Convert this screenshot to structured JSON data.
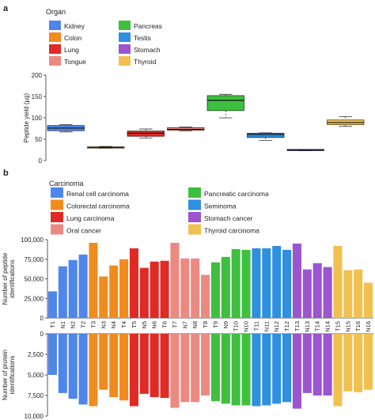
{
  "panel_a": {
    "panel_label": "a",
    "legend_title": "Organ",
    "legend": [
      {
        "label": "Kidney",
        "color": "#4f86ec"
      },
      {
        "label": "Colon",
        "color": "#f08c1e"
      },
      {
        "label": "Lung",
        "color": "#e02a26"
      },
      {
        "label": "Tongue",
        "color": "#ec8a82"
      },
      {
        "label": "Pancreas",
        "color": "#3fbf3f"
      },
      {
        "label": "Testis",
        "color": "#2f8fe0"
      },
      {
        "label": "Stomach",
        "color": "#9a55cf"
      },
      {
        "label": "Thyroid",
        "color": "#f2c04e"
      }
    ]
  },
  "panel_b": {
    "panel_label": "b",
    "legend_title": "Carcinoma",
    "legend": [
      {
        "label": "Renal cell carcinoma",
        "color": "#4f86ec"
      },
      {
        "label": "Colorectal carcinoma",
        "color": "#f08c1e"
      },
      {
        "label": "Lung carcinoma",
        "color": "#e02a26"
      },
      {
        "label": "Oral cancer",
        "color": "#ec8a82"
      },
      {
        "label": "Pancreatic carcinoma",
        "color": "#3fbf3f"
      },
      {
        "label": "Seminoma",
        "color": "#2f8fe0"
      },
      {
        "label": "Stomach cancer",
        "color": "#9a55cf"
      },
      {
        "label": "Thyroid carcinoma",
        "color": "#f2c04e"
      }
    ]
  },
  "chart_data": [
    {
      "type": "box",
      "ylabel": "Peptide yield (µg)",
      "ylim": [
        0,
        200
      ],
      "yticks": [
        0,
        50,
        100,
        150,
        200
      ],
      "series": [
        {
          "name": "Kidney",
          "color": "#4f86ec",
          "min": 67,
          "q1": 70,
          "median": 76,
          "q3": 82,
          "max": 84
        },
        {
          "name": "Colon",
          "color": "#f08c1e",
          "min": 29,
          "q1": 30,
          "median": 31,
          "q3": 32,
          "max": 33
        },
        {
          "name": "Lung",
          "color": "#e02a26",
          "min": 53,
          "q1": 57,
          "median": 64,
          "q3": 69,
          "max": 74
        },
        {
          "name": "Tongue",
          "color": "#ec8a82",
          "min": 69,
          "q1": 71,
          "median": 73,
          "q3": 77,
          "max": 79
        },
        {
          "name": "Pancreas",
          "color": "#3fbf3f",
          "min": 100,
          "q1": 117,
          "median": 141,
          "q3": 152,
          "max": 155
        },
        {
          "name": "Testis",
          "color": "#2f8fe0",
          "min": 47,
          "q1": 54,
          "median": 61,
          "q3": 64,
          "max": 65
        },
        {
          "name": "Stomach",
          "color": "#9a55cf",
          "min": 23,
          "q1": 24,
          "median": 25,
          "q3": 26,
          "max": 26
        },
        {
          "name": "Thyroid",
          "color": "#f2c04e",
          "min": 80,
          "q1": 84,
          "median": 89,
          "q3": 95,
          "max": 103
        }
      ]
    },
    {
      "type": "bar",
      "ylabel": "Number of peptide identifications",
      "ylim": [
        0,
        100000
      ],
      "yticks": [
        0,
        25000,
        50000,
        75000,
        100000
      ],
      "ytick_labels": [
        "0",
        "25,000",
        "50,000",
        "75,000",
        "100,000"
      ],
      "categories": [
        "T1",
        "N1",
        "N2",
        "T2",
        "T3",
        "N3",
        "N4",
        "T4",
        "T5",
        "N5",
        "N6",
        "T6",
        "T7",
        "N7",
        "N8",
        "T8",
        "T9",
        "N9",
        "T10",
        "N10",
        "T11",
        "N11",
        "N12",
        "T12",
        "T13",
        "N13",
        "T14",
        "N14",
        "T15",
        "N15",
        "T16",
        "N16"
      ],
      "values": [
        34000,
        66000,
        74000,
        81000,
        96000,
        53000,
        67000,
        75000,
        89000,
        64000,
        72000,
        73000,
        96000,
        76000,
        76000,
        55000,
        71000,
        78000,
        88000,
        87000,
        89000,
        89000,
        92000,
        87000,
        95000,
        62000,
        70000,
        65000,
        92000,
        61000,
        62000,
        45000
      ]
    },
    {
      "type": "bar",
      "orientation": "down",
      "ylabel": "Number of protein identifications",
      "ylim": [
        0,
        10000
      ],
      "yticks": [
        0,
        2500,
        5000,
        7500,
        10000
      ],
      "ytick_labels": [
        "0",
        "2,500",
        "5,000",
        "7,500",
        "10,000"
      ],
      "categories": [
        "T1",
        "N1",
        "N2",
        "T2",
        "T3",
        "N3",
        "N4",
        "T4",
        "T5",
        "N5",
        "N6",
        "T6",
        "T7",
        "N7",
        "N8",
        "T8",
        "T9",
        "N9",
        "T10",
        "N10",
        "T11",
        "N11",
        "N12",
        "T12",
        "T13",
        "N13",
        "T14",
        "N14",
        "T15",
        "N15",
        "T16",
        "N16"
      ],
      "values": [
        5000,
        7200,
        7900,
        8600,
        8800,
        6800,
        7700,
        8100,
        8800,
        7300,
        7700,
        7800,
        9000,
        8300,
        8300,
        7500,
        8200,
        8500,
        8700,
        8700,
        8800,
        8700,
        8500,
        8300,
        9100,
        7200,
        7500,
        7500,
        8800,
        7000,
        7100,
        6800
      ]
    }
  ]
}
